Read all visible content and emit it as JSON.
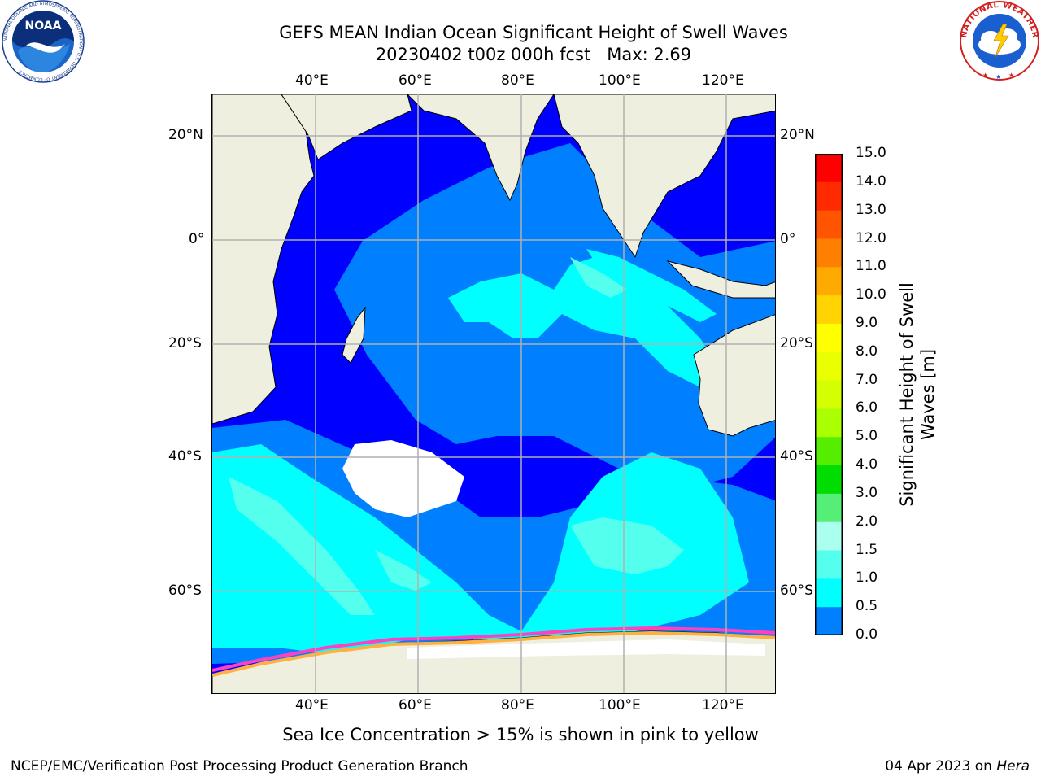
{
  "header": {
    "title_line1": "GEFS MEAN Indian Ocean Significant Height of Swell Waves",
    "title_line2": "20230402 t00z 000h fcst   Max: 2.69"
  },
  "logos": {
    "noara_text": "NOAA",
    "noaa_ring_text": "NATIONAL OCEANIC AND ATMOSPHERIC ADMINISTRATION · U.S. DEPARTMENT OF COMMERCE",
    "nws_ring_text": "NATIONAL WEATHER SERVICE"
  },
  "axes": {
    "lon_labels": [
      "40°E",
      "60°E",
      "80°E",
      "100°E",
      "120°E"
    ],
    "lat_labels": [
      "20°N",
      "0°",
      "20°S",
      "40°S",
      "60°S"
    ]
  },
  "colorbar": {
    "title": "Significant Height of Swell\nWaves [m]",
    "ticks": [
      "15.0",
      "14.0",
      "13.0",
      "12.0",
      "11.0",
      "10.0",
      "9.0",
      "8.0",
      "7.0",
      "6.0",
      "5.0",
      "4.0",
      "3.0",
      "2.0",
      "1.5",
      "1.0",
      "0.5",
      "0.0"
    ],
    "colors": [
      "#ff0000",
      "#ff2a00",
      "#ff5500",
      "#ff7f00",
      "#ffaa00",
      "#ffd400",
      "#ffff00",
      "#eaff00",
      "#d4ff00",
      "#aaff00",
      "#55ee00",
      "#00dd00",
      "#55ee77",
      "#aaffee",
      "#55ffee",
      "#00ffff",
      "#0080ff",
      "#0000ff"
    ],
    "ocean_colors": {
      "lt05": "#0000ff",
      "lt10": "#0080ff",
      "lt15": "#00ffff",
      "lt20": "#55ffee",
      "land": "#efefe0",
      "ice": "#ffffff"
    }
  },
  "footer": {
    "note": "Sea Ice Concentration > 15% is shown in pink to yellow",
    "left": "NCEP/EMC/Verification Post Processing Product Generation Branch",
    "right_prefix": "04 Apr 2023 on ",
    "right_em": "Hera"
  }
}
